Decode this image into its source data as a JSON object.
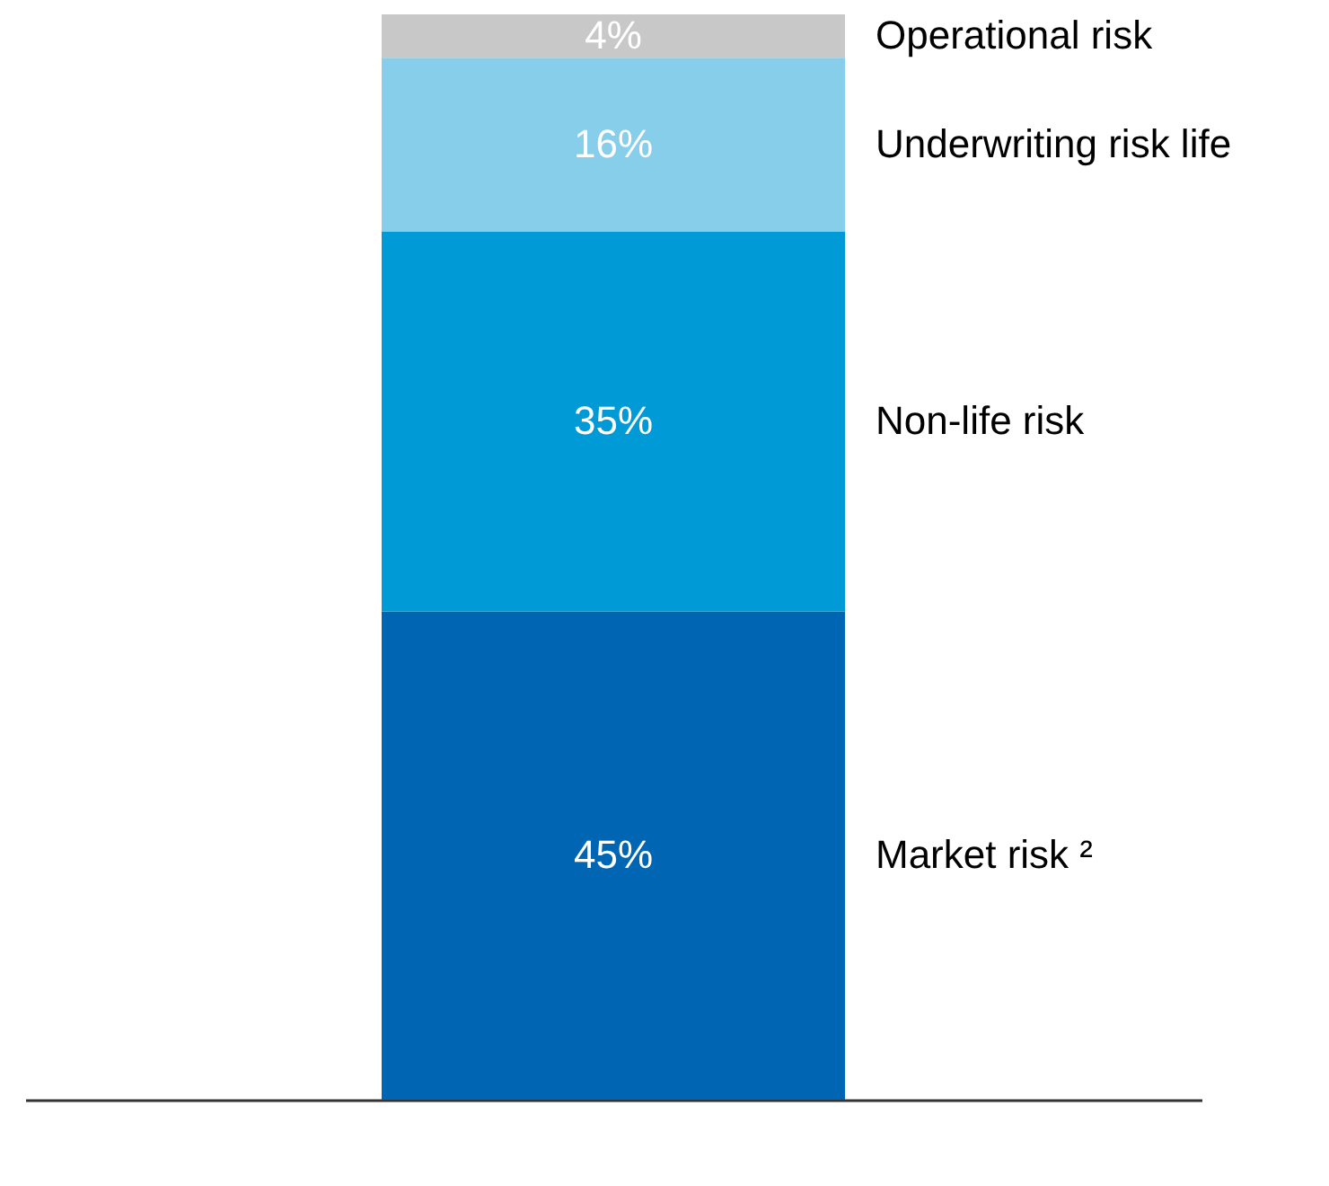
{
  "chart_data": {
    "type": "bar",
    "stacked": true,
    "categories": [
      null
    ],
    "grid": false,
    "series": [
      {
        "name": "Market risk ²",
        "color": "#0066b3",
        "values": [
          45
        ],
        "value_labels": [
          "45%"
        ]
      },
      {
        "name": "Non-life risk",
        "color": "#009ad6",
        "values": [
          35
        ],
        "value_labels": [
          "35%"
        ]
      },
      {
        "name": "Underwriting risk life",
        "color": "#87ceeb",
        "values": [
          16
        ],
        "value_labels": [
          "16%"
        ]
      },
      {
        "name": "Operational risk",
        "color": "#c8c8c8",
        "values": [
          4
        ],
        "value_labels": [
          "4%"
        ]
      }
    ]
  }
}
